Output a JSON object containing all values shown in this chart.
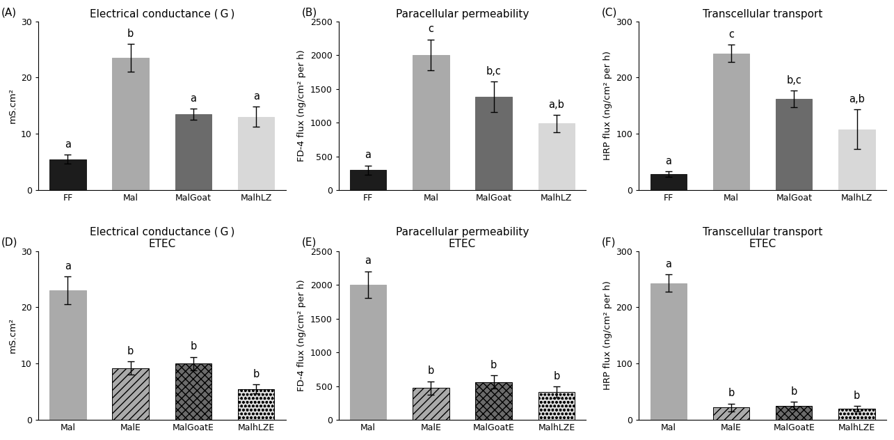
{
  "panels": [
    {
      "label": "A",
      "title": "Electrical conductance ( G )",
      "title_italic_G": true,
      "ylabel": "mS.cm²",
      "ylim": [
        0,
        30
      ],
      "yticks": [
        0,
        10,
        20,
        30
      ],
      "categories": [
        "FF",
        "Mal",
        "MalGoat",
        "MalhLZ"
      ],
      "values": [
        5.5,
        23.5,
        13.5,
        13.0
      ],
      "errors": [
        0.8,
        2.5,
        1.0,
        1.8
      ],
      "sig_labels": [
        "a",
        "b",
        "a",
        "a"
      ],
      "colors": [
        "#1c1c1c",
        "#aaaaaa",
        "#6b6b6b",
        "#d8d8d8"
      ],
      "hatch": [
        null,
        null,
        null,
        null
      ],
      "bar_edge_colors": [
        "#1c1c1c",
        "#aaaaaa",
        "#6b6b6b",
        "#d8d8d8"
      ]
    },
    {
      "label": "B",
      "title": "Paracellular permeability",
      "ylabel": "FD-4 flux (ng/cm² per h)",
      "ylim": [
        0,
        2500
      ],
      "yticks": [
        0,
        500,
        1000,
        1500,
        2000,
        2500
      ],
      "categories": [
        "FF",
        "Mal",
        "MalGoat",
        "MalhLZ"
      ],
      "values": [
        295,
        2000,
        1380,
        985
      ],
      "errors": [
        70,
        230,
        230,
        125
      ],
      "sig_labels": [
        "a",
        "c",
        "b,c",
        "a,b"
      ],
      "colors": [
        "#1c1c1c",
        "#aaaaaa",
        "#6b6b6b",
        "#d8d8d8"
      ],
      "hatch": [
        null,
        null,
        null,
        null
      ],
      "bar_edge_colors": [
        "#1c1c1c",
        "#aaaaaa",
        "#6b6b6b",
        "#d8d8d8"
      ]
    },
    {
      "label": "C",
      "title": "Transcellular transport",
      "ylabel": "HRP flux (ng/cm² per h)",
      "ylim": [
        0,
        300
      ],
      "yticks": [
        0,
        100,
        200,
        300
      ],
      "categories": [
        "FF",
        "Mal",
        "MalGoat",
        "MalhLZ"
      ],
      "values": [
        28,
        243,
        162,
        108
      ],
      "errors": [
        5,
        15,
        15,
        35
      ],
      "sig_labels": [
        "a",
        "c",
        "b,c",
        "a,b"
      ],
      "colors": [
        "#1c1c1c",
        "#aaaaaa",
        "#6b6b6b",
        "#d8d8d8"
      ],
      "hatch": [
        null,
        null,
        null,
        null
      ],
      "bar_edge_colors": [
        "#1c1c1c",
        "#aaaaaa",
        "#6b6b6b",
        "#d8d8d8"
      ]
    },
    {
      "label": "D",
      "title": "Electrical conductance ( G )\nETEC",
      "ylabel": "mS.cm²",
      "ylim": [
        0,
        30
      ],
      "yticks": [
        0,
        10,
        20,
        30
      ],
      "categories": [
        "Mal",
        "MalE",
        "MalGoatE",
        "MalhLZE"
      ],
      "values": [
        23.0,
        9.2,
        10.0,
        5.5
      ],
      "errors": [
        2.5,
        1.2,
        1.2,
        0.8
      ],
      "sig_labels": [
        "a",
        "b",
        "b",
        "b"
      ],
      "colors": [
        "#aaaaaa",
        "#aaaaaa",
        "#6b6b6b",
        "#d8d8d8"
      ],
      "hatch": [
        null,
        "///",
        "xxx",
        "ooo"
      ],
      "bar_edge_colors": [
        "#aaaaaa",
        "#555555",
        "#555555",
        "#888888"
      ]
    },
    {
      "label": "E",
      "title": "Paracellular permeability\nETEC",
      "ylabel": "FD-4 flux (ng/cm² per h)",
      "ylim": [
        0,
        2500
      ],
      "yticks": [
        0,
        500,
        1000,
        1500,
        2000,
        2500
      ],
      "categories": [
        "Mal",
        "MalE",
        "MalGoatE",
        "MalhLZE"
      ],
      "values": [
        2000,
        470,
        560,
        415
      ],
      "errors": [
        200,
        100,
        100,
        80
      ],
      "sig_labels": [
        "a",
        "b",
        "b",
        "b"
      ],
      "colors": [
        "#aaaaaa",
        "#aaaaaa",
        "#6b6b6b",
        "#d8d8d8"
      ],
      "hatch": [
        null,
        "///",
        "xxx",
        "ooo"
      ],
      "bar_edge_colors": [
        "#aaaaaa",
        "#555555",
        "#555555",
        "#888888"
      ]
    },
    {
      "label": "F",
      "title": "Transcellular transport\nETEC",
      "ylabel": "HRP flux (ng/cm² per h)",
      "ylim": [
        0,
        300
      ],
      "yticks": [
        0,
        100,
        200,
        300
      ],
      "categories": [
        "Mal",
        "MalE",
        "MalGoatE",
        "MalhLZE"
      ],
      "values": [
        243,
        22,
        25,
        20
      ],
      "errors": [
        15,
        7,
        7,
        5
      ],
      "sig_labels": [
        "a",
        "b",
        "b",
        "b"
      ],
      "colors": [
        "#aaaaaa",
        "#aaaaaa",
        "#6b6b6b",
        "#d8d8d8"
      ],
      "hatch": [
        null,
        "///",
        "xxx",
        "ooo"
      ],
      "bar_edge_colors": [
        "#aaaaaa",
        "#555555",
        "#555555",
        "#888888"
      ]
    }
  ],
  "background_color": "#ffffff",
  "bar_width": 0.58,
  "fontsize_title": 11,
  "fontsize_label": 9.5,
  "fontsize_tick": 9,
  "fontsize_sig": 10.5
}
